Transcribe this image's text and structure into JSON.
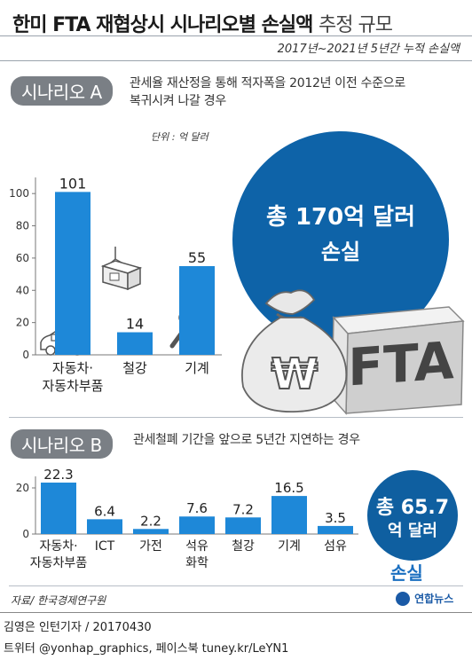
{
  "header": {
    "title_bold": "한미 FTA 재협상시 시나리오별 손실액",
    "title_light": "추정 규모",
    "subtitle": "2017년~2021년 5년간 누적 손실액"
  },
  "scenario_a": {
    "label": "시나리오 A",
    "desc_line1": "관세율 재산정을 통해 적자폭을 2012년 이전 수준으로",
    "desc_line2": "복귀시켜 나갈 경우",
    "unit": "단위 : 억 달러",
    "total_line1": "총 170억 달러",
    "total_line2": "손실",
    "fta_label": "FTA",
    "money_symbol": "₩"
  },
  "scenario_b": {
    "label": "시나리오 B",
    "desc": "관세철폐 기간을 앞으로 5년간 지연하는 경우",
    "total_line1": "총 65.7",
    "total_line2": "억 달러",
    "loss_label": "손실"
  },
  "footer": {
    "source": "자료/ 한국경제연구원",
    "logo": "연합뉴스",
    "reporter": "김영은 인턴기자 / 20170430",
    "sns": "트위터 @yonhap_graphics, 페이스북 tuney.kr/LeYN1"
  },
  "colors": {
    "bar": "#1e88d8",
    "circle_a": "#0e63a8",
    "circle_b": "#0f5fa0",
    "loss_text": "#1a6fc0"
  },
  "chart_data": [
    {
      "type": "bar",
      "title": "시나리오 A",
      "categories": [
        [
          "자동차·",
          "자동차부품"
        ],
        [
          "철강"
        ],
        [
          "기계"
        ]
      ],
      "values": [
        101,
        14,
        55
      ],
      "value_labels": [
        "101",
        "14",
        "55"
      ],
      "ylim": [
        0,
        110
      ],
      "yticks": [
        0,
        20,
        40,
        60,
        80,
        100
      ],
      "grid": false,
      "unit": "단위 : 억 달러"
    },
    {
      "type": "bar",
      "title": "시나리오 B",
      "categories": [
        [
          "자동차·",
          "자동차부품"
        ],
        [
          "ICT"
        ],
        [
          "가전"
        ],
        [
          "석유",
          "화학"
        ],
        [
          "철강"
        ],
        [
          "기계"
        ],
        [
          "섬유"
        ]
      ],
      "values": [
        22.3,
        6.4,
        2.2,
        7.6,
        7.2,
        16.5,
        3.5
      ],
      "value_labels": [
        "22.3",
        "6.4",
        "2.2",
        "7.6",
        "7.2",
        "16.5",
        "3.5"
      ],
      "ylim": [
        0,
        25
      ],
      "yticks": [
        0,
        20
      ],
      "grid": false
    }
  ]
}
